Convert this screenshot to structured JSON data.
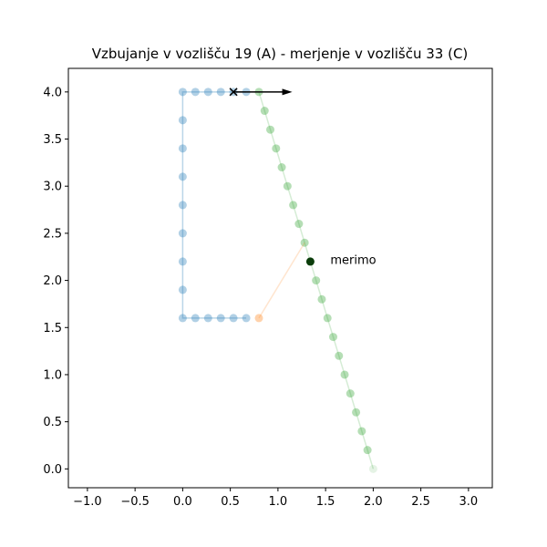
{
  "chart_data": {
    "type": "scatter",
    "title": "Vzbujanje v vozlišču 19  (A) - merjenje v vozlišču 33 (C)",
    "xlabel": "",
    "ylabel": "",
    "xlim": [
      -1.2,
      3.25
    ],
    "ylim": [
      -0.2,
      4.25
    ],
    "xticks": [
      -1.0,
      -0.5,
      0.0,
      0.5,
      1.0,
      1.5,
      2.0,
      2.5,
      3.0
    ],
    "xtick_labels": [
      "−1.0",
      "−0.5",
      "0.0",
      "0.5",
      "1.0",
      "1.5",
      "2.0",
      "2.5",
      "3.0"
    ],
    "yticks": [
      0.0,
      0.5,
      1.0,
      1.5,
      2.0,
      2.5,
      3.0,
      3.5,
      4.0
    ],
    "ytick_labels": [
      "0.0",
      "0.5",
      "1.0",
      "1.5",
      "2.0",
      "2.5",
      "3.0",
      "3.5",
      "4.0"
    ],
    "grid": false,
    "series": [
      {
        "color": "#1f77b4",
        "points": [
          [
            0.0,
            1.6
          ],
          [
            0.0,
            1.9
          ],
          [
            0.0,
            2.2
          ],
          [
            0.0,
            2.5
          ],
          [
            0.0,
            2.8
          ],
          [
            0.0,
            3.1
          ],
          [
            0.0,
            3.4
          ],
          [
            0.0,
            3.7
          ],
          [
            0.0,
            4.0
          ],
          [
            0.133,
            4.0
          ],
          [
            0.267,
            4.0
          ],
          [
            0.4,
            4.0
          ],
          [
            0.533,
            4.0
          ],
          [
            0.667,
            4.0
          ],
          [
            0.133,
            1.6
          ],
          [
            0.267,
            1.6
          ],
          [
            0.4,
            1.6
          ],
          [
            0.533,
            1.6
          ],
          [
            0.667,
            1.6
          ]
        ]
      },
      {
        "color": "#2ca02c",
        "points": [
          [
            0.8,
            4.0
          ],
          [
            0.86,
            3.8
          ],
          [
            0.92,
            3.6
          ],
          [
            0.98,
            3.4
          ],
          [
            1.04,
            3.2
          ],
          [
            1.1,
            3.0
          ],
          [
            1.16,
            2.8
          ],
          [
            1.22,
            2.6
          ],
          [
            1.28,
            2.4
          ],
          [
            1.34,
            2.2
          ],
          [
            1.4,
            2.0
          ],
          [
            1.46,
            1.8
          ],
          [
            1.52,
            1.6
          ],
          [
            1.58,
            1.4
          ],
          [
            1.64,
            1.2
          ],
          [
            1.7,
            1.0
          ],
          [
            1.76,
            0.8
          ],
          [
            1.82,
            0.6
          ],
          [
            1.88,
            0.4
          ],
          [
            1.94,
            0.2
          ],
          [
            2.0,
            0.0
          ]
        ]
      },
      {
        "color": "#ff7f0e",
        "points": [
          [
            0.8,
            1.6
          ],
          [
            1.28,
            2.4
          ]
        ]
      }
    ],
    "excitation": {
      "node": 19,
      "x": 0.533,
      "y": 4.0,
      "marker": "x",
      "arrow_to": [
        1.15,
        4.0
      ],
      "color": "#000000"
    },
    "measurement": {
      "node": 33,
      "x": 1.34,
      "y": 2.2,
      "label": "merimo",
      "label_x": 1.55,
      "label_y": 2.22,
      "color": "#0b3d0b"
    }
  }
}
